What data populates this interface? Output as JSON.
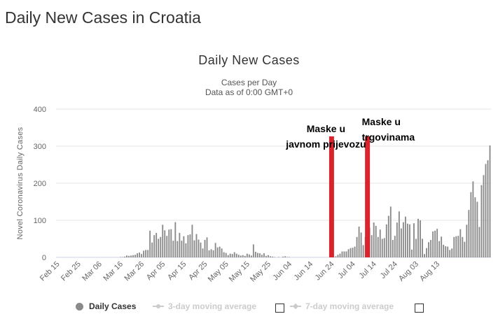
{
  "page_title": "Daily New Cases in Croatia",
  "chart_data": {
    "type": "bar",
    "title": "Daily New Cases",
    "subtitle": "Cases per Day",
    "subtitle2": "Data as of 0:00 GMT+0",
    "ylabel": "Novel Coronavirus Daily Cases",
    "xlabel": "",
    "ylim": [
      0,
      400
    ],
    "yticks": [
      0,
      100,
      200,
      300,
      400
    ],
    "grid": true,
    "bar_color": "#8a8a8a",
    "x_tick_labels": [
      "Feb 15",
      "Feb 25",
      "Mar 06",
      "Mar 16",
      "Mar 26",
      "Apr 05",
      "Apr 15",
      "Apr 25",
      "May 05",
      "May 15",
      "May 25",
      "Jun 04",
      "Jun 14",
      "Jun 24",
      "Jul 04",
      "Jul 14",
      "Jul 24",
      "Aug 03",
      "Aug 13"
    ],
    "values": [
      0,
      0,
      0,
      0,
      0,
      0,
      0,
      0,
      0,
      0,
      0,
      0,
      0,
      0,
      0,
      0,
      0,
      0,
      0,
      0,
      0,
      0,
      0,
      0,
      0,
      0,
      0,
      0,
      0,
      0,
      1,
      1,
      2,
      5,
      4,
      5,
      6,
      7,
      11,
      13,
      9,
      18,
      20,
      20,
      72,
      40,
      60,
      66,
      50,
      55,
      88,
      73,
      58,
      75,
      76,
      45,
      95,
      44,
      66,
      45,
      57,
      38,
      60,
      62,
      88,
      46,
      63,
      48,
      40,
      24,
      47,
      54,
      19,
      22,
      19,
      39,
      27,
      29,
      24,
      14,
      12,
      6,
      10,
      9,
      14,
      10,
      7,
      5,
      6,
      4,
      10,
      8,
      5,
      35,
      15,
      12,
      11,
      7,
      11,
      4,
      6,
      3,
      2,
      1,
      0,
      1,
      0,
      2,
      3,
      1,
      1,
      0,
      0,
      0,
      0,
      0,
      0,
      0,
      0,
      0,
      0,
      0,
      0,
      0,
      0,
      0,
      0,
      0,
      0,
      0,
      1,
      1,
      3,
      7,
      10,
      16,
      16,
      16,
      22,
      25,
      26,
      29,
      55,
      83,
      67,
      33,
      55,
      75,
      80,
      60,
      94,
      85,
      55,
      75,
      50,
      52,
      89,
      112,
      137,
      47,
      58,
      94,
      124,
      78,
      95,
      110,
      91,
      89,
      21,
      92,
      50,
      104,
      100,
      50,
      9,
      25,
      41,
      47,
      70,
      72,
      77,
      44,
      56,
      34,
      30,
      29,
      20,
      24,
      55,
      57,
      58,
      76,
      55,
      42,
      88,
      128,
      176,
      205,
      162,
      150,
      82,
      195,
      222,
      252,
      262,
      302
    ],
    "legend": [
      {
        "label": "Daily Cases",
        "state": "active"
      },
      {
        "label": "3-day moving average",
        "state": "inactive"
      },
      {
        "label": "7-day moving average",
        "state": "inactive"
      }
    ],
    "annotations": [
      {
        "text_line1": "Maske u",
        "text_line2": "javnom prijevozu",
        "index": 130
      },
      {
        "text_line1": "Maske u",
        "text_line2": "trgovinama",
        "index": 147
      }
    ],
    "annotation_color": "#d9242e"
  }
}
